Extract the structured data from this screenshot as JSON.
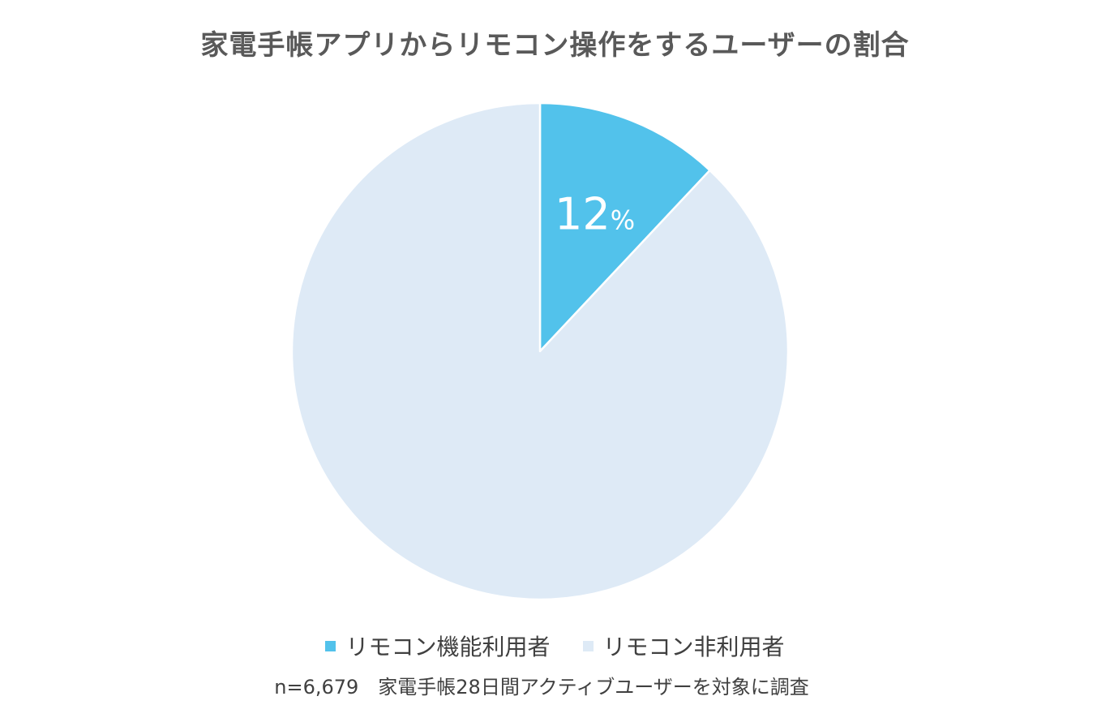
{
  "chart_data": {
    "type": "pie",
    "title": "家電手帳アプリからリモコン操作をするユーザーの割合",
    "slices": [
      {
        "name": "リモコン機能利用者",
        "value": 12,
        "label": "12%",
        "color": "#52c2eb"
      },
      {
        "name": "リモコン非利用者",
        "value": 88,
        "label": "",
        "color": "#deeaf6"
      }
    ],
    "legend_position": "bottom",
    "footnote": "n=6,679　家電手帳28日間アクティブユーザーを対象に調査"
  }
}
